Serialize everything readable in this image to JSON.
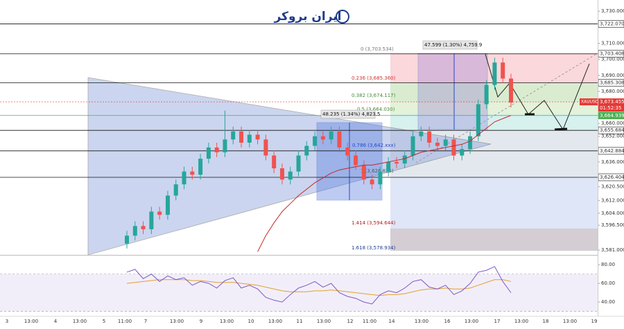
{
  "chart_data": {
    "type": "candlestick",
    "brand": "ایران بروکر",
    "symbol": "XAUUSD",
    "countdown": "01:52:35",
    "ylim": [
      3578,
      3737
    ],
    "yticks": [
      {
        "value": 3730,
        "label": "3,730.000"
      },
      {
        "value": 3710,
        "label": "3,710.000"
      },
      {
        "value": 3700,
        "label": "3,700.000"
      },
      {
        "value": 3690,
        "label": "3,690.000"
      },
      {
        "value": 3680,
        "label": "3,680.000"
      },
      {
        "value": 3660,
        "label": "3,660.000"
      },
      {
        "value": 3652,
        "label": "3,652.000"
      },
      {
        "value": 3636,
        "label": "3,636.000"
      },
      {
        "value": 3620.5,
        "label": "3,620.500"
      },
      {
        "value": 3612,
        "label": "3,612.000"
      },
      {
        "value": 3604,
        "label": "3,604.000"
      },
      {
        "value": 3596.5,
        "label": "3,596.500"
      },
      {
        "value": 3581,
        "label": "3,581.000"
      }
    ],
    "levels": [
      {
        "value": 3722.07,
        "label": "3,722.070"
      },
      {
        "value": 3703.408,
        "label": "3,703.408"
      },
      {
        "value": 3685.308,
        "label": "3,685.308"
      },
      {
        "value": 3664.939,
        "label": "3,664.939",
        "color": "#4caf50"
      },
      {
        "value": 3655.684,
        "label": "3,655.684"
      },
      {
        "value": 3642.884,
        "label": "3,642.884"
      },
      {
        "value": 3626.404,
        "label": "3,626.404"
      }
    ],
    "last_price": {
      "value": 3673.455,
      "label": "3,673.455",
      "color": "#e53935"
    },
    "fib_labels": [
      "0 (3,703.534)",
      "0.236 (3,685.360)",
      "0.382 (3,674.117)",
      "0.5 (3,664.030)",
      "0.786 (3,642.xxx)",
      "1 (3,626.825)",
      "1.414 (3,594.644)",
      "1.618 (3,578.934)"
    ],
    "measure_labels": [
      "47.599 (1.30%) 4,759.9",
      "48.235 (1.34%) 4,823.5"
    ],
    "x_labels": [
      "3",
      "13:00",
      "4",
      "13:00",
      "5",
      "11:00",
      "7",
      "13:00",
      "9",
      "13:00",
      "10",
      "13:00",
      "11",
      "13:00",
      "12",
      "11:00",
      "14",
      "13:00",
      "16",
      "13:00",
      "17",
      "13:00",
      "18",
      "13:00",
      "19"
    ],
    "up_color": "#26a69a",
    "down_color": "#ef5350",
    "series": [
      {
        "name": "XAUUSD",
        "open": [
          3585,
          3590,
          3596,
          3594,
          3605,
          3603,
          3615,
          3622,
          3630,
          3628,
          3638,
          3645,
          3642,
          3650,
          3655,
          3648,
          3653,
          3650,
          3640,
          3632,
          3625,
          3630,
          3640,
          3646,
          3652,
          3650,
          3655,
          3645,
          3640,
          3634,
          3625,
          3622,
          3630,
          3636,
          3635,
          3640,
          3652,
          3655,
          3648,
          3646,
          3650,
          3640,
          3644,
          3652,
          3672,
          3684,
          3698,
          3688
        ],
        "high": [
          3593,
          3599,
          3599,
          3608,
          3608,
          3618,
          3625,
          3633,
          3633,
          3641,
          3648,
          3648,
          3668,
          3658,
          3658,
          3656,
          3656,
          3653,
          3643,
          3635,
          3633,
          3643,
          3649,
          3655,
          3655,
          3658,
          3658,
          3648,
          3643,
          3637,
          3628,
          3633,
          3639,
          3639,
          3643,
          3655,
          3658,
          3658,
          3651,
          3653,
          3653,
          3647,
          3655,
          3675,
          3687,
          3701,
          3701,
          3691
        ],
        "low": [
          3582,
          3587,
          3591,
          3591,
          3600,
          3600,
          3612,
          3619,
          3625,
          3625,
          3635,
          3639,
          3639,
          3647,
          3645,
          3645,
          3647,
          3637,
          3629,
          3622,
          3622,
          3627,
          3637,
          3643,
          3647,
          3647,
          3642,
          3637,
          3631,
          3622,
          3619,
          3619,
          3627,
          3632,
          3632,
          3637,
          3649,
          3645,
          3643,
          3643,
          3637,
          3637,
          3641,
          3649,
          3669,
          3681,
          3685,
          3670
        ],
        "close": [
          3590,
          3596,
          3594,
          3605,
          3603,
          3615,
          3622,
          3630,
          3628,
          3638,
          3645,
          3642,
          3650,
          3655,
          3648,
          3653,
          3650,
          3640,
          3632,
          3625,
          3630,
          3640,
          3646,
          3652,
          3650,
          3655,
          3645,
          3640,
          3634,
          3625,
          3622,
          3630,
          3636,
          3635,
          3640,
          3652,
          3655,
          3648,
          3646,
          3650,
          3640,
          3644,
          3652,
          3672,
          3684,
          3698,
          3688,
          3673
        ]
      }
    ],
    "ma": {
      "color": "#c62828",
      "values": [
        null,
        null,
        null,
        null,
        null,
        null,
        null,
        null,
        null,
        null,
        null,
        null,
        null,
        null,
        null,
        null,
        3580,
        3590,
        3598,
        3605,
        3610,
        3615,
        3619,
        3623,
        3626,
        3629,
        3631,
        3632,
        3633,
        3634,
        3634,
        3635,
        3636,
        3637,
        3638,
        3640,
        3642,
        3643,
        3644,
        3645,
        3646,
        3647,
        3649,
        3653,
        3657,
        3661,
        3663,
        3665
      ]
    },
    "rsi": {
      "ylim": [
        26,
        89
      ],
      "yticks": [
        {
          "value": 80,
          "label": "80.00"
        },
        {
          "value": 60,
          "label": "60.00"
        },
        {
          "value": 40,
          "label": "40.00"
        }
      ],
      "band": [
        30,
        70
      ],
      "color": "#7e57c2",
      "ma_color": "#e0a030",
      "values": [
        72,
        75,
        65,
        70,
        62,
        68,
        64,
        66,
        58,
        62,
        60,
        55,
        63,
        66,
        55,
        58,
        54,
        45,
        42,
        40,
        48,
        55,
        58,
        62,
        56,
        60,
        50,
        46,
        44,
        40,
        38,
        48,
        52,
        50,
        55,
        62,
        64,
        56,
        54,
        58,
        48,
        52,
        60,
        72,
        74,
        78,
        62,
        50
      ],
      "ma": [
        60,
        61,
        62,
        63,
        64,
        64,
        64,
        64,
        63,
        63,
        62,
        61,
        61,
        61,
        60,
        59,
        58,
        56,
        54,
        52,
        51,
        51,
        51,
        52,
        52,
        53,
        52,
        51,
        50,
        49,
        48,
        47,
        48,
        48,
        49,
        51,
        53,
        54,
        54,
        55,
        54,
        54,
        55,
        58,
        61,
        64,
        64,
        62
      ]
    }
  }
}
